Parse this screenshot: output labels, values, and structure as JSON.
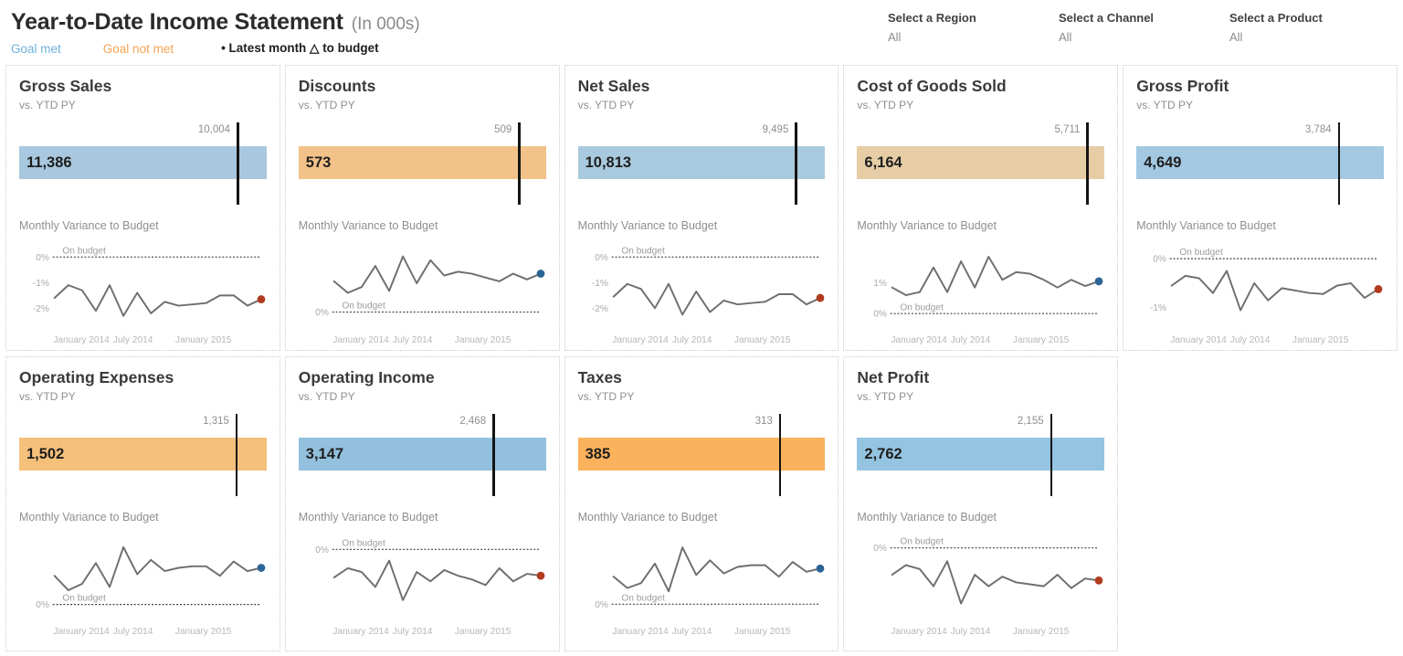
{
  "header": {
    "title": "Year-to-Date Income Statement",
    "title_suffix": "(In 000s)",
    "legend": {
      "goal_met": "Goal met",
      "goal_not_met": "Goal not met",
      "latest_month": "• Latest month △ to budget"
    }
  },
  "filters": [
    {
      "label": "Select a Region",
      "value": "All"
    },
    {
      "label": "Select a Channel",
      "value": "All"
    },
    {
      "label": "Select a Product",
      "value": "All"
    }
  ],
  "colors": {
    "goal_met_text": "#6db1dd",
    "goal_not_met_text": "#f5a351",
    "variance_line": "#6e6e6e",
    "dot_goal_met": "#2d6496",
    "dot_goal_not_met": "#b13a1e",
    "reference_line": "#141414"
  },
  "chart_data": [
    {
      "id": "gross-sales",
      "type": "bullet+line",
      "title": "Gross Sales",
      "subtitle": "vs. YTD PY",
      "bar": {
        "value": 11386,
        "label": "11,386",
        "reference": 10004,
        "reference_label": "10,004",
        "color": "#a9c8df",
        "status": "goal met"
      },
      "spark": {
        "title": "Monthly Variance to Budget",
        "budget_label": "On budget",
        "yticks": [
          {
            "label": "0%",
            "value": 0
          },
          {
            "label": "-1%",
            "value": -1
          },
          {
            "label": "-2%",
            "value": -2
          }
        ],
        "ylim": [
          -2.75,
          0.55
        ],
        "xlabels": [
          "January 2014",
          "July 2014",
          "January 2015"
        ],
        "values": [
          -1.6,
          -1.1,
          -1.3,
          -2.1,
          -1.1,
          -2.3,
          -1.4,
          -2.2,
          -1.75,
          -1.9,
          -1.85,
          -1.8,
          -1.5,
          -1.5,
          -1.9,
          -1.65
        ],
        "dot_color": "#b13a1e"
      }
    },
    {
      "id": "discounts",
      "type": "bullet+line",
      "title": "Discounts",
      "subtitle": "vs. YTD PY",
      "bar": {
        "value": 573,
        "label": "573",
        "reference": 509,
        "reference_label": "509",
        "color": "#f2c288",
        "status": "goal not met"
      },
      "spark": {
        "title": "Monthly Variance to Budget",
        "budget_label": "On budget",
        "yticks": [
          {
            "label": "0%",
            "value": 0
          }
        ],
        "ylim": [
          -0.4,
          1.8
        ],
        "xlabels": [
          "January 2014",
          "July 2014",
          "January 2015"
        ],
        "values": [
          0.8,
          0.5,
          0.65,
          1.2,
          0.55,
          1.45,
          0.75,
          1.35,
          0.95,
          1.05,
          1.0,
          0.9,
          0.8,
          1.0,
          0.85,
          1.0
        ],
        "dot_color": "#2d6496"
      }
    },
    {
      "id": "net-sales",
      "type": "bullet+line",
      "title": "Net Sales",
      "subtitle": "vs. YTD PY",
      "bar": {
        "value": 10813,
        "label": "10,813",
        "reference": 9495,
        "reference_label": "9,495",
        "color": "#a9cade",
        "status": "goal met"
      },
      "spark": {
        "title": "Monthly Variance to Budget",
        "budget_label": "On budget",
        "yticks": [
          {
            "label": "0%",
            "value": 0
          },
          {
            "label": "-1%",
            "value": -1
          },
          {
            "label": "-2%",
            "value": -2
          }
        ],
        "ylim": [
          -2.75,
          0.55
        ],
        "xlabels": [
          "January 2014",
          "July 2014",
          "January 2015"
        ],
        "values": [
          -1.55,
          -1.05,
          -1.25,
          -2.0,
          -1.05,
          -2.25,
          -1.35,
          -2.15,
          -1.7,
          -1.85,
          -1.8,
          -1.75,
          -1.45,
          -1.45,
          -1.85,
          -1.6
        ],
        "dot_color": "#b13a1e"
      }
    },
    {
      "id": "cost-of-goods-sold",
      "type": "bullet+line",
      "title": "Cost of Goods Sold",
      "subtitle": "vs. YTD PY",
      "bar": {
        "value": 6164,
        "label": "6,164",
        "reference": 5711,
        "reference_label": "5,711",
        "color": "#e6cda6",
        "status": "goal not met"
      },
      "spark": {
        "title": "Monthly Variance to Budget",
        "budget_label": "On budget",
        "yticks": [
          {
            "label": "1%",
            "value": 1
          },
          {
            "label": "0%",
            "value": 0
          }
        ],
        "ylim": [
          -0.45,
          2.3
        ],
        "xlabels": [
          "January 2014",
          "July 2014",
          "January 2015"
        ],
        "values": [
          0.85,
          0.6,
          0.7,
          1.5,
          0.7,
          1.7,
          0.85,
          1.85,
          1.1,
          1.35,
          1.3,
          1.1,
          0.85,
          1.1,
          0.9,
          1.05
        ],
        "dot_color": "#2d6496"
      }
    },
    {
      "id": "gross-profit",
      "type": "bullet+line",
      "title": "Gross Profit",
      "subtitle": "vs. YTD PY",
      "bar": {
        "value": 4649,
        "label": "4,649",
        "reference": 3784,
        "reference_label": "3,784",
        "color": "#a3c9e2",
        "status": "goal met"
      },
      "spark": {
        "title": "Monthly Variance to Budget",
        "budget_label": "On budget",
        "yticks": [
          {
            "label": "0%",
            "value": 0
          },
          {
            "label": "-1%",
            "value": -1
          }
        ],
        "ylim": [
          -1.4,
          0.32
        ],
        "xlabels": [
          "January 2014",
          "July 2014",
          "January 2015"
        ],
        "values": [
          -0.55,
          -0.35,
          -0.4,
          -0.7,
          -0.25,
          -1.05,
          -0.5,
          -0.85,
          -0.6,
          -0.65,
          -0.7,
          -0.72,
          -0.55,
          -0.5,
          -0.8,
          -0.62
        ],
        "dot_color": "#b13a1e"
      }
    },
    {
      "id": "operating-expenses",
      "type": "bullet+line",
      "title": "Operating Expenses",
      "subtitle": "vs. YTD PY",
      "bar": {
        "value": 1502,
        "label": "1,502",
        "reference": 1315,
        "reference_label": "1,315",
        "color": "#f5c07a",
        "status": "goal not met"
      },
      "spark": {
        "title": "Monthly Variance to Budget",
        "budget_label": "On budget",
        "yticks": [
          {
            "label": "0%",
            "value": 0
          }
        ],
        "ylim": [
          -0.45,
          2.2
        ],
        "xlabels": [
          "January 2014",
          "July 2014",
          "January 2015"
        ],
        "values": [
          0.9,
          0.45,
          0.65,
          1.3,
          0.55,
          1.8,
          0.95,
          1.4,
          1.05,
          1.15,
          1.2,
          1.2,
          0.9,
          1.35,
          1.05,
          1.15
        ],
        "dot_color": "#2d6496"
      }
    },
    {
      "id": "operating-income",
      "type": "bullet+line",
      "title": "Operating Income",
      "subtitle": "vs. YTD PY",
      "bar": {
        "value": 3147,
        "label": "3,147",
        "reference": 2468,
        "reference_label": "2,468",
        "color": "#92c0dd",
        "status": "goal met"
      },
      "spark": {
        "title": "Monthly Variance to Budget",
        "budget_label": "On budget",
        "yticks": [
          {
            "label": "0%",
            "value": 0
          }
        ],
        "ylim": [
          -1.85,
          0.4
        ],
        "xlabels": [
          "January 2014",
          "July 2014",
          "January 2015"
        ],
        "values": [
          -0.75,
          -0.5,
          -0.6,
          -1.0,
          -0.3,
          -1.35,
          -0.6,
          -0.85,
          -0.55,
          -0.7,
          -0.8,
          -0.95,
          -0.5,
          -0.85,
          -0.65,
          -0.7
        ],
        "dot_color": "#b13a1e"
      }
    },
    {
      "id": "taxes",
      "type": "bullet+line",
      "title": "Taxes",
      "subtitle": "vs. YTD PY",
      "bar": {
        "value": 385,
        "label": "385",
        "reference": 313,
        "reference_label": "313",
        "color": "#fbb25c",
        "status": "goal not met"
      },
      "spark": {
        "title": "Monthly Variance to Budget",
        "budget_label": "On budget",
        "yticks": [
          {
            "label": "0%",
            "value": 0
          }
        ],
        "ylim": [
          -0.45,
          2.15
        ],
        "xlabels": [
          "January 2014",
          "July 2014",
          "January 2015"
        ],
        "values": [
          0.85,
          0.5,
          0.65,
          1.25,
          0.4,
          1.75,
          0.9,
          1.35,
          0.95,
          1.15,
          1.2,
          1.2,
          0.85,
          1.3,
          1.0,
          1.1
        ],
        "dot_color": "#2d6496"
      }
    },
    {
      "id": "net-profit",
      "type": "bullet+line",
      "title": "Net Profit",
      "subtitle": "vs. YTD PY",
      "bar": {
        "value": 2762,
        "label": "2,762",
        "reference": 2155,
        "reference_label": "2,155",
        "color": "#95c4e2",
        "status": "goal met"
      },
      "spark": {
        "title": "Monthly Variance to Budget",
        "budget_label": "On budget",
        "yticks": [
          {
            "label": "0%",
            "value": 0
          }
        ],
        "ylim": [
          -1.85,
          0.35
        ],
        "xlabels": [
          "January 2014",
          "July 2014",
          "January 2015"
        ],
        "values": [
          -0.7,
          -0.45,
          -0.55,
          -1.0,
          -0.35,
          -1.45,
          -0.7,
          -1.0,
          -0.75,
          -0.9,
          -0.95,
          -1.0,
          -0.7,
          -1.05,
          -0.8,
          -0.85
        ],
        "dot_color": "#b13a1e"
      }
    }
  ]
}
